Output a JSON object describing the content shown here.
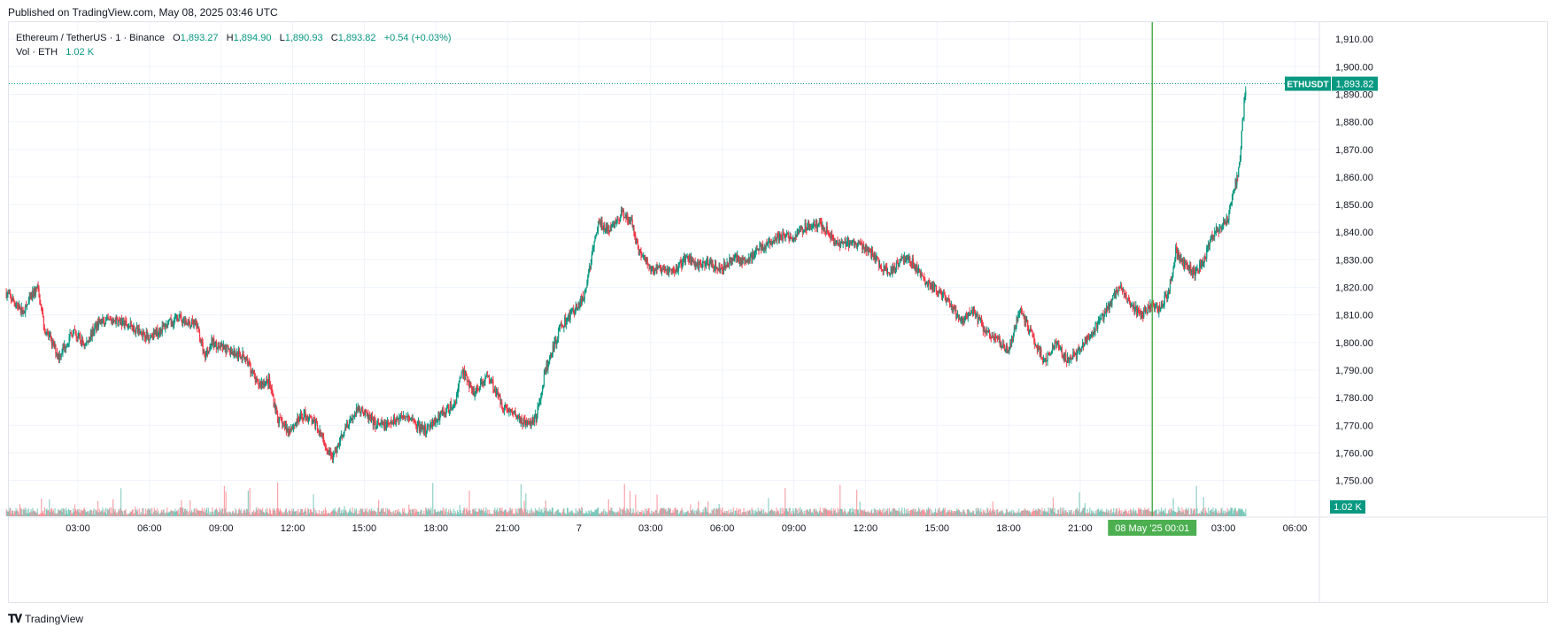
{
  "header": {
    "published": "Published on TradingView.com, May 08, 2025 03:46 UTC"
  },
  "legend": {
    "symbol": "Ethereum / TetherUS · 1 · Binance",
    "o_label": "O",
    "o": "1,893.27",
    "h_label": "H",
    "h": "1,894.90",
    "l_label": "L",
    "l": "1,890.93",
    "c_label": "C",
    "c": "1,893.82",
    "change": "+0.54 (+0.03%)",
    "vol_label": "Vol · ETH",
    "vol": "1.02 K"
  },
  "footer": {
    "brand": "TradingView"
  },
  "colors": {
    "up": "#089981",
    "down": "#f23645",
    "crosshair": "#4caf50",
    "grid": "#f0f3fa",
    "text": "#131722"
  },
  "chart_data": {
    "type": "candlestick",
    "title": "Ethereum / TetherUS · 1 · Binance",
    "ylim": [
      1745,
      1915
    ],
    "y_ticks": [
      1750,
      1760,
      1770,
      1780,
      1790,
      1800,
      1810,
      1820,
      1830,
      1840,
      1850,
      1860,
      1870,
      1880,
      1890,
      1900,
      1910
    ],
    "y_tick_labels": [
      "1,750.00",
      "1,760.00",
      "1,770.00",
      "1,780.00",
      "1,790.00",
      "1,800.00",
      "1,810.00",
      "1,820.00",
      "1,830.00",
      "1,840.00",
      "1,850.00",
      "1,860.00",
      "1,870.00",
      "1,880.00",
      "1,890.00",
      "1,900.00",
      "1,910.00"
    ],
    "time_hours_range": [
      0,
      54.5
    ],
    "x_ticks": [
      {
        "t": 3,
        "label": "03:00"
      },
      {
        "t": 6,
        "label": "06:00"
      },
      {
        "t": 9,
        "label": "09:00"
      },
      {
        "t": 12,
        "label": "12:00"
      },
      {
        "t": 15,
        "label": "15:00"
      },
      {
        "t": 18,
        "label": "18:00"
      },
      {
        "t": 21,
        "label": "21:00"
      },
      {
        "t": 24,
        "label": "7"
      },
      {
        "t": 27,
        "label": "03:00"
      },
      {
        "t": 30,
        "label": "06:00"
      },
      {
        "t": 33,
        "label": "09:00"
      },
      {
        "t": 36,
        "label": "12:00"
      },
      {
        "t": 39,
        "label": "15:00"
      },
      {
        "t": 42,
        "label": "18:00"
      },
      {
        "t": 45,
        "label": "21:00"
      },
      {
        "t": 51,
        "label": "03:00"
      },
      {
        "t": 54,
        "label": "06:00"
      }
    ],
    "price_path": [
      [
        0,
        1818
      ],
      [
        0.7,
        1811
      ],
      [
        1.3,
        1820
      ],
      [
        1.6,
        1805
      ],
      [
        2.2,
        1795
      ],
      [
        2.8,
        1804
      ],
      [
        3.3,
        1799
      ],
      [
        3.8,
        1807
      ],
      [
        4.5,
        1808
      ],
      [
        5.2,
        1806
      ],
      [
        6,
        1802
      ],
      [
        6.5,
        1805
      ],
      [
        7.2,
        1809
      ],
      [
        8,
        1806
      ],
      [
        8.3,
        1795
      ],
      [
        8.6,
        1800
      ],
      [
        9.3,
        1797
      ],
      [
        10,
        1795
      ],
      [
        10.5,
        1785
      ],
      [
        11,
        1786
      ],
      [
        11.4,
        1772
      ],
      [
        11.8,
        1768
      ],
      [
        12.5,
        1774
      ],
      [
        13,
        1770
      ],
      [
        13.3,
        1764
      ],
      [
        13.7,
        1758
      ],
      [
        14.2,
        1770
      ],
      [
        14.8,
        1776
      ],
      [
        15.5,
        1770
      ],
      [
        16,
        1770
      ],
      [
        16.7,
        1774
      ],
      [
        17.5,
        1768
      ],
      [
        18.2,
        1774
      ],
      [
        18.8,
        1778
      ],
      [
        19.1,
        1790
      ],
      [
        19.6,
        1782
      ],
      [
        20.2,
        1788
      ],
      [
        20.8,
        1777
      ],
      [
        21.3,
        1774
      ],
      [
        21.8,
        1770
      ],
      [
        22.2,
        1773
      ],
      [
        22.6,
        1790
      ],
      [
        23.2,
        1805
      ],
      [
        23.7,
        1811
      ],
      [
        24.2,
        1816
      ],
      [
        24.5,
        1830
      ],
      [
        24.8,
        1843
      ],
      [
        25.3,
        1841
      ],
      [
        25.8,
        1847
      ],
      [
        26.2,
        1843
      ],
      [
        26.5,
        1833
      ],
      [
        27,
        1827
      ],
      [
        27.5,
        1826
      ],
      [
        28,
        1826
      ],
      [
        28.5,
        1831
      ],
      [
        29,
        1828
      ],
      [
        29.5,
        1829
      ],
      [
        30,
        1827
      ],
      [
        30.5,
        1831
      ],
      [
        31,
        1829
      ],
      [
        31.5,
        1834
      ],
      [
        32,
        1836
      ],
      [
        32.5,
        1839
      ],
      [
        33,
        1838
      ],
      [
        33.5,
        1842
      ],
      [
        34,
        1843
      ],
      [
        34.5,
        1840
      ],
      [
        34.7,
        1835
      ],
      [
        35.2,
        1836
      ],
      [
        35.8,
        1835
      ],
      [
        36.2,
        1833
      ],
      [
        36.6,
        1828
      ],
      [
        37,
        1825
      ],
      [
        37.5,
        1831
      ],
      [
        38,
        1829
      ],
      [
        38.5,
        1822
      ],
      [
        39,
        1819
      ],
      [
        39.5,
        1814
      ],
      [
        40,
        1808
      ],
      [
        40.5,
        1811
      ],
      [
        41,
        1805
      ],
      [
        41.5,
        1801
      ],
      [
        42,
        1797
      ],
      [
        42.5,
        1812
      ],
      [
        43,
        1802
      ],
      [
        43.5,
        1793
      ],
      [
        44,
        1800
      ],
      [
        44.4,
        1794
      ],
      [
        44.8,
        1795
      ],
      [
        45.3,
        1802
      ],
      [
        45.8,
        1807
      ],
      [
        46.3,
        1815
      ],
      [
        46.7,
        1820
      ],
      [
        47,
        1815
      ],
      [
        47.5,
        1810
      ],
      [
        48,
        1813
      ],
      [
        48.3,
        1812
      ],
      [
        48.7,
        1818
      ],
      [
        49,
        1833
      ],
      [
        49.4,
        1828
      ],
      [
        49.8,
        1825
      ],
      [
        50.2,
        1830
      ],
      [
        50.5,
        1839
      ],
      [
        50.8,
        1841
      ],
      [
        51.2,
        1845
      ],
      [
        51.4,
        1855
      ],
      [
        51.6,
        1860
      ],
      [
        51.7,
        1866
      ],
      [
        51.8,
        1880
      ],
      [
        51.95,
        1893.82
      ]
    ],
    "last_price": 1893.82,
    "last_price_label": "1,893.82",
    "symbol_tag": "ETHUSDT",
    "volume_label": "1.02 K",
    "crosshair": {
      "time_hours": 48.02,
      "label": "08 May '25   00:01"
    }
  }
}
